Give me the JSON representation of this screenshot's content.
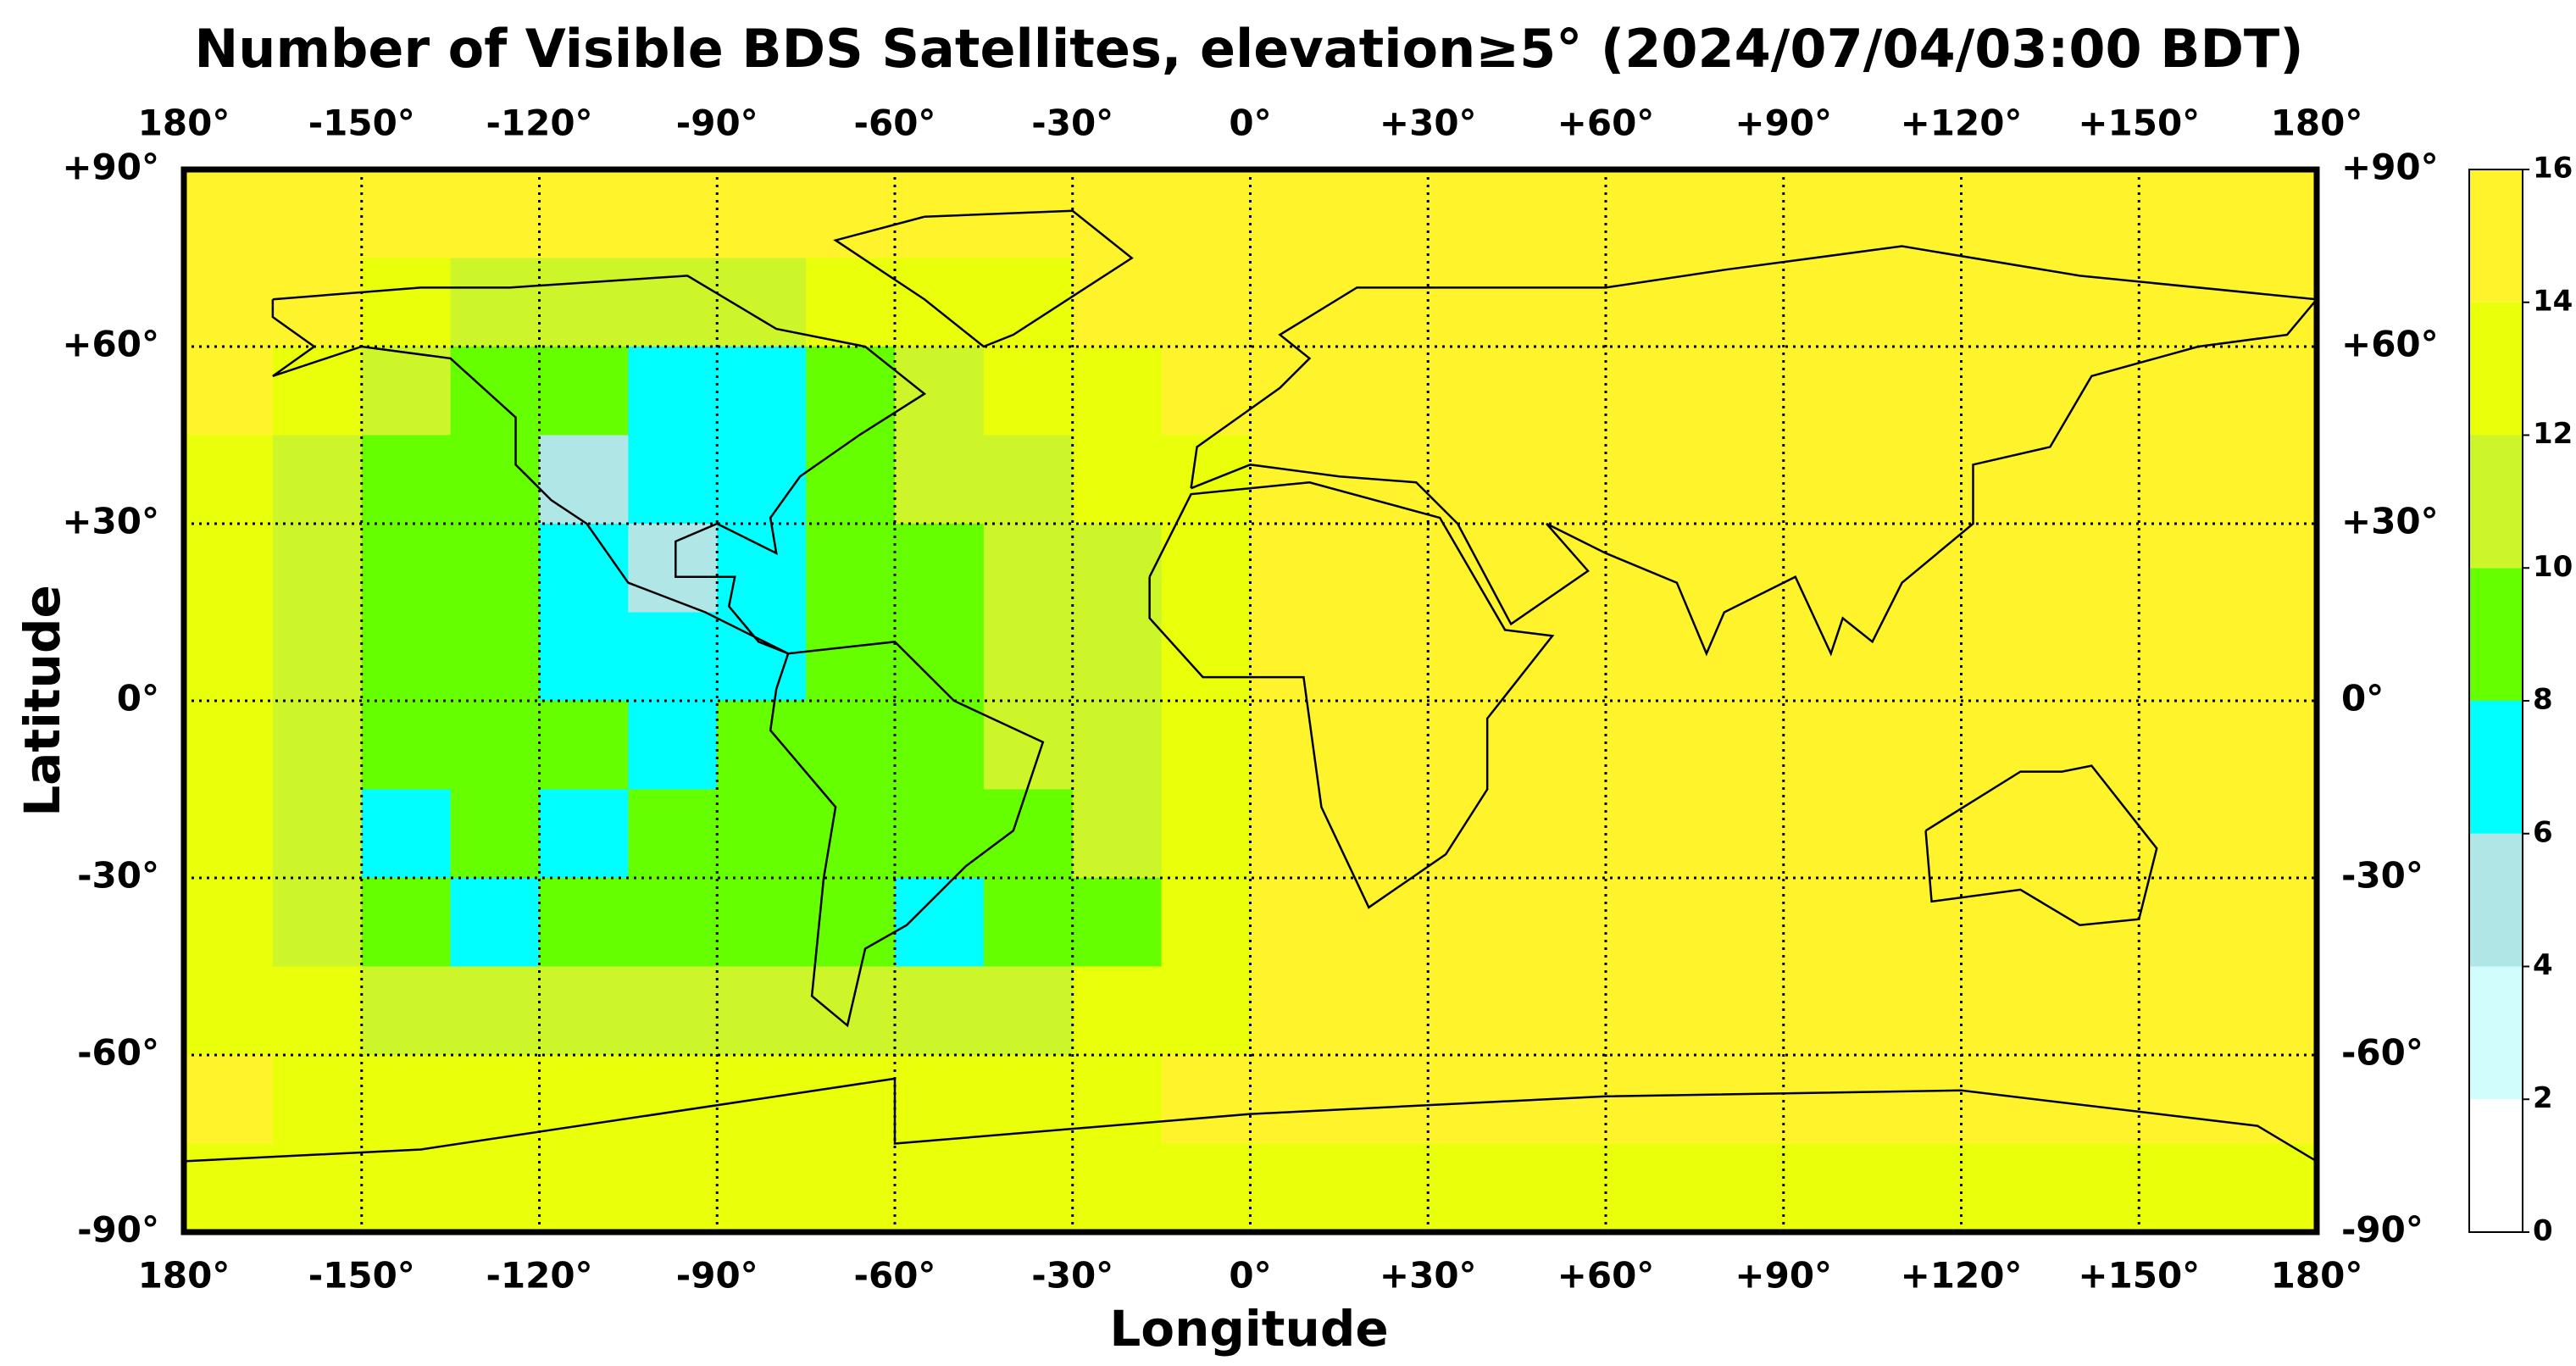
{
  "chart_data": {
    "type": "heatmap",
    "title": "Number of Visible BDS Satellites, elevation≥5° (2024/07/04/03:00 BDT)",
    "xlabel": "Longitude",
    "ylabel": "Latitude",
    "xlim": [
      -180,
      180
    ],
    "ylim": [
      -90,
      90
    ],
    "xticks": [
      {
        "value": -180,
        "label": "180°"
      },
      {
        "value": -150,
        "label": "-150°"
      },
      {
        "value": -120,
        "label": "-120°"
      },
      {
        "value": -90,
        "label": "-90°"
      },
      {
        "value": -60,
        "label": "-60°"
      },
      {
        "value": -30,
        "label": "-30°"
      },
      {
        "value": 0,
        "label": "0°"
      },
      {
        "value": 30,
        "label": "+30°"
      },
      {
        "value": 60,
        "label": "+60°"
      },
      {
        "value": 90,
        "label": "+90°"
      },
      {
        "value": 120,
        "label": "+120°"
      },
      {
        "value": 150,
        "label": "+150°"
      },
      {
        "value": 180,
        "label": "180°"
      }
    ],
    "yticks": [
      {
        "value": 90,
        "label": "+90°"
      },
      {
        "value": 60,
        "label": "+60°"
      },
      {
        "value": 30,
        "label": "+30°"
      },
      {
        "value": 0,
        "label": "0°"
      },
      {
        "value": -30,
        "label": "-30°"
      },
      {
        "value": -60,
        "label": "-60°"
      },
      {
        "value": -90,
        "label": "-90°"
      }
    ],
    "grid": true,
    "x": [
      -172.5,
      -157.5,
      -142.5,
      -127.5,
      -112.5,
      -97.5,
      -82.5,
      -67.5,
      -52.5,
      -37.5,
      -22.5,
      -7.5,
      7.5,
      22.5,
      37.5,
      52.5,
      67.5,
      82.5,
      97.5,
      112.5,
      127.5,
      142.5,
      157.5,
      172.5
    ],
    "y": [
      82.5,
      67.5,
      52.5,
      37.5,
      22.5,
      7.5,
      -7.5,
      -22.5,
      -37.5,
      -52.5,
      -67.5,
      -82.5
    ],
    "values": [
      [
        14,
        14,
        14,
        14,
        14,
        14,
        14,
        14,
        14,
        14,
        14,
        14,
        14,
        14,
        14,
        14,
        14,
        14,
        14,
        14,
        14,
        14,
        14,
        14
      ],
      [
        14,
        14,
        12,
        10,
        10,
        10,
        10,
        12,
        12,
        12,
        14,
        14,
        14,
        14,
        14,
        14,
        14,
        14,
        14,
        14,
        14,
        14,
        14,
        14
      ],
      [
        14,
        12,
        10,
        9,
        9,
        7,
        7,
        9,
        11,
        12,
        12,
        14,
        14,
        14,
        14,
        14,
        14,
        14,
        14,
        14,
        14,
        14,
        14,
        14
      ],
      [
        12,
        11,
        9,
        9,
        5,
        7,
        7,
        9,
        11,
        11,
        12,
        12,
        14,
        14,
        14,
        14,
        14,
        14,
        14,
        14,
        14,
        14,
        14,
        14
      ],
      [
        12,
        11,
        9,
        9,
        7,
        5,
        7,
        9,
        9,
        11,
        11,
        12,
        14,
        14,
        14,
        14,
        14,
        14,
        14,
        14,
        14,
        14,
        14,
        14
      ],
      [
        12,
        11,
        9,
        9,
        7,
        7,
        7,
        9,
        9,
        11,
        11,
        12,
        14,
        14,
        14,
        14,
        14,
        14,
        14,
        14,
        14,
        14,
        14,
        14
      ],
      [
        12,
        11,
        9,
        9,
        9,
        7,
        9,
        9,
        9,
        11,
        11,
        12,
        14,
        14,
        14,
        14,
        14,
        14,
        14,
        14,
        14,
        14,
        14,
        14
      ],
      [
        12,
        10,
        7,
        9,
        7,
        9,
        9,
        9,
        9,
        9,
        11,
        12,
        14,
        14,
        14,
        14,
        14,
        14,
        14,
        14,
        14,
        14,
        14,
        14
      ],
      [
        12,
        11,
        9,
        7,
        9,
        9,
        9,
        9,
        7,
        9,
        9,
        12,
        14,
        14,
        14,
        14,
        14,
        14,
        14,
        14,
        14,
        14,
        14,
        14
      ],
      [
        12,
        12,
        11,
        11,
        11,
        11,
        11,
        11,
        11,
        11,
        12,
        12,
        14,
        14,
        14,
        14,
        14,
        14,
        14,
        14,
        14,
        14,
        14,
        14
      ],
      [
        14,
        13,
        13,
        12,
        12,
        13,
        13,
        13,
        12,
        12,
        13,
        14,
        14,
        14,
        14,
        14,
        14,
        14,
        14,
        14,
        14,
        14,
        14,
        14
      ],
      [
        13,
        13,
        13,
        13,
        13,
        13,
        13,
        13,
        13,
        13,
        13,
        13,
        13,
        13,
        13,
        13,
        13,
        13,
        13,
        13,
        13,
        13,
        13,
        13
      ]
    ],
    "levels": [
      0,
      2,
      4,
      6,
      8,
      10,
      12,
      14,
      16
    ],
    "colors": [
      "#ffffff",
      "#d2fdfd",
      "#b0e6e6",
      "#00ffff",
      "#66ff00",
      "#ccf52a",
      "#eaff0a",
      "#fff42c"
    ],
    "cticks": [
      0,
      2,
      4,
      6,
      8,
      10,
      12,
      14,
      16
    ]
  }
}
